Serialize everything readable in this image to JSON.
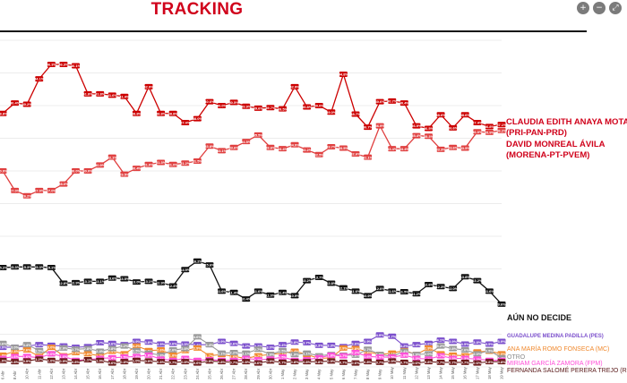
{
  "title": "TRACKING",
  "toolbar": {
    "zoom_in_icon": "zoom-in-icon",
    "zoom_out_icon": "zoom-out-icon",
    "expand_icon": "expand-icon"
  },
  "chart_data": {
    "type": "line",
    "x": [
      "6 Abr",
      "8 Abr",
      "10 Abr",
      "11 Abr",
      "12 Abr",
      "13 Abr",
      "14 Abr",
      "15 Abr",
      "16 Abr",
      "17 Abr",
      "18 Abr",
      "19 Abr",
      "20 Abr",
      "21 Abr",
      "22 Abr",
      "23 Abr",
      "24 Abr",
      "25 Abr",
      "26 Abr",
      "27 Abr",
      "28 Abr",
      "29 Abr",
      "30 Abr",
      "1 May",
      "2 May",
      "3 May",
      "4 May",
      "5 May",
      "6 May",
      "7 May",
      "8 May",
      "9 May",
      "10 May",
      "11 May",
      "12 May",
      "13 May",
      "14 May",
      "15 May",
      "16 May",
      "17 May",
      "18 May",
      "19 May"
    ],
    "series": [
      {
        "name": "CLAUDIA EDITH ANAYA MOTA (PRI-PAN-PRD)",
        "color": "#cc0000",
        "values": [
          38.8,
          40.4,
          40.2,
          44.1,
          46.3,
          46.3,
          46.1,
          41.8,
          41.8,
          41.6,
          41.4,
          38.8,
          42.9,
          38.8,
          38.8,
          37.4,
          38.0,
          40.6,
          40.0,
          40.5,
          39.9,
          39.6,
          39.7,
          39.5,
          42.9,
          39.8,
          40.0,
          39.0,
          44.8,
          38.7,
          36.7,
          40.6,
          40.7,
          40.4,
          36.9,
          36.5,
          38.6,
          36.6,
          38.6,
          37.4,
          36.8,
          37.1
        ]
      },
      {
        "name": "DAVID MONREAL ÁVILA (MORENA-PT-PVEM)",
        "color": "#e04040",
        "values": [
          30.0,
          27.0,
          26.2,
          27.0,
          27.0,
          28.0,
          30.0,
          30.0,
          30.9,
          32.1,
          29.5,
          30.4,
          31.0,
          31.3,
          31.0,
          31.2,
          31.5,
          33.8,
          33.1,
          33.6,
          34.5,
          35.5,
          33.6,
          33.4,
          34.0,
          33.2,
          32.5,
          33.7,
          33.5,
          32.6,
          32.1,
          36.9,
          33.4,
          33.4,
          35.4,
          35.3,
          33.3,
          33.6,
          33.5,
          36.0,
          35.9,
          36.2
        ]
      },
      {
        "name": "AÚN NO DECIDE",
        "color": "#111111",
        "values": [
          15.2,
          15.3,
          15.3,
          15.3,
          15.2,
          12.8,
          12.9,
          13.1,
          13.1,
          13.6,
          13.5,
          13.0,
          13.1,
          12.9,
          12.4,
          14.9,
          16.2,
          15.6,
          11.6,
          11.4,
          10.4,
          11.6,
          11.0,
          11.4,
          10.9,
          13.2,
          13.7,
          12.8,
          12.1,
          11.6,
          10.9,
          12.0,
          11.6,
          11.5,
          11.2,
          12.6,
          12.3,
          12.0,
          13.8,
          13.2,
          11.6,
          9.6
        ]
      },
      {
        "name": "GUADALUPE MEDINA PADILLA (PES)",
        "color": "#7b4fcc",
        "values": [
          3.0,
          3.0,
          3.2,
          3.4,
          3.3,
          3.2,
          3.0,
          3.1,
          3.7,
          3.6,
          3.4,
          3.9,
          3.8,
          3.5,
          3.6,
          3.5,
          3.4,
          3.4,
          3.9,
          3.6,
          3.2,
          3.2,
          3.0,
          3.4,
          3.8,
          3.7,
          3.3,
          3.3,
          3.1,
          3.6,
          3.9,
          4.9,
          4.7,
          3.2,
          3.4,
          3.6,
          4.1,
          3.9,
          3.5,
          3.8,
          3.5,
          3.9
        ]
      },
      {
        "name": "ANA MARÍA ROMO FONSECA (MC)",
        "color": "#f0892e",
        "values": [
          1.8,
          2.4,
          2.6,
          1.6,
          3.0,
          1.7,
          2.2,
          2.0,
          1.7,
          2.4,
          2.0,
          3.2,
          2.5,
          2.6,
          1.8,
          2.5,
          2.9,
          1.7,
          1.9,
          1.6,
          1.3,
          1.7,
          1.9,
          2.1,
          2.4,
          1.9,
          1.3,
          1.4,
          2.9,
          2.8,
          2.3,
          1.9,
          2.1,
          2.5,
          1.9,
          2.9,
          2.0,
          1.8,
          1.7,
          2.3,
          2.4,
          2.0
        ]
      },
      {
        "name": "OTRO",
        "color": "#9a9a9a",
        "values": [
          3.6,
          3.0,
          3.4,
          2.5,
          2.0,
          2.9,
          2.7,
          2.8,
          2.4,
          2.8,
          3.2,
          2.5,
          2.1,
          1.8,
          2.6,
          2.8,
          4.6,
          3.4,
          2.1,
          2.2,
          2.1,
          2.7,
          1.9,
          2.5,
          1.9,
          2.1,
          1.7,
          1.9,
          1.8,
          1.8,
          2.7,
          1.9,
          1.6,
          2.4,
          1.9,
          2.0,
          3.2,
          2.8,
          2.6,
          2.0,
          2.5,
          1.4
        ]
      },
      {
        "name": "MIRIAM GARCÍA ZAMORA (FPM)",
        "color": "#ff4fd8",
        "values": [
          1.3,
          1.6,
          1.6,
          1.4,
          2.0,
          1.6,
          1.0,
          1.1,
          1.3,
          1.4,
          1.5,
          1.6,
          1.8,
          1.2,
          1.0,
          1.3,
          1.0,
          1.1,
          1.0,
          1.0,
          1.3,
          1.1,
          1.2,
          1.5,
          1.0,
          1.1,
          1.4,
          1.8,
          1.7,
          2.2,
          1.6,
          1.5,
          1.5,
          1.8,
          1.3,
          1.2,
          1.7,
          1.3,
          1.3,
          1.2,
          1.0,
          1.0
        ]
      },
      {
        "name": "FERNANDA SALOMÉ PERERA TREJO (RSP)",
        "color": "#6b1a1a",
        "values": [
          1.0,
          0.8,
          0.9,
          1.2,
          1.0,
          0.9,
          0.8,
          1.1,
          1.0,
          0.6,
          0.8,
          1.0,
          0.9,
          0.8,
          0.7,
          0.8,
          0.6,
          0.9,
          0.8,
          0.7,
          0.8,
          0.6,
          0.9,
          0.7,
          0.8,
          0.8,
          0.8,
          0.9,
          0.7,
          0.6,
          0.8,
          0.7,
          0.9,
          0.7,
          0.6,
          0.8,
          0.7,
          0.7,
          0.7,
          0.6,
          0.8,
          0.8
        ]
      }
    ],
    "legend": [
      {
        "lines": [
          "CLAUDIA EDITH ANAYA MOTA",
          "(PRI-PAN-PRD)"
        ]
      },
      {
        "lines": [
          "DAVID MONREAL ÁVILA",
          "(MORENA-PT-PVEM)"
        ]
      },
      {
        "lines": [
          "AÚN NO DECIDE"
        ]
      },
      {
        "lines": [
          "GUADALUPE MEDINA PADILLA  (PES)"
        ]
      },
      {
        "lines": [
          "ANA MARÍA ROMO FONSECA (MC)"
        ]
      },
      {
        "lines": [
          "OTRO"
        ]
      },
      {
        "lines": [
          "MIRIAM GARCÍA ZAMORA (FPM)"
        ]
      },
      {
        "lines": [
          "FERNANDA SALOMÉ PERERA TREJO (RSP)"
        ]
      }
    ],
    "ylim": [
      0,
      50
    ],
    "grid": true
  }
}
